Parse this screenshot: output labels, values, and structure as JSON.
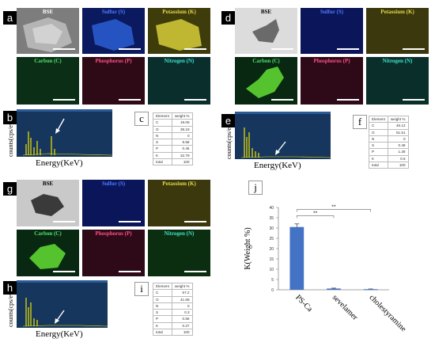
{
  "panels": {
    "a": {
      "label": "a",
      "tiles": [
        "BSE",
        "Sulfur (S)",
        "Potassium (K)",
        "Carbon (C)",
        "Phosphorus (P)",
        "Nitrogen (N)"
      ]
    },
    "d": {
      "label": "d",
      "tiles": [
        "BSE",
        "Sulfur (S)",
        "Potassium (K)",
        "Carbon (C)",
        "Phosphorus (P)",
        "Nitrogen (N)"
      ]
    },
    "g": {
      "label": "g",
      "tiles": [
        "BSE",
        "Sulfur (S)",
        "Potassium (K)",
        "Carbon (C)",
        "Phosphorus (P)",
        "Nitrogen (N)"
      ]
    },
    "b": {
      "label": "b",
      "ylabel": "counts(cps/ev)",
      "xlabel": "Energy(KeV)"
    },
    "e": {
      "label": "e",
      "ylabel": "counts(cps/ev)",
      "xlabel": "Energy(KeV)"
    },
    "h": {
      "label": "h",
      "ylabel": "counts(cps/ev)",
      "xlabel": "Energy(KeV)"
    },
    "c": {
      "label": "c",
      "header": [
        "Element",
        "weight %"
      ],
      "rows": [
        [
          "C",
          "19.05"
        ],
        [
          "O",
          "38.18"
        ],
        [
          "N",
          "0"
        ],
        [
          "S",
          "9.58"
        ],
        [
          "P",
          "0.45"
        ],
        [
          "K",
          "32.79"
        ],
        [
          "total",
          "100"
        ]
      ]
    },
    "f": {
      "label": "f",
      "header": [
        "Element",
        "weight %"
      ],
      "rows": [
        [
          "C",
          "46.12"
        ],
        [
          "O",
          "51.51"
        ],
        [
          "N",
          "0"
        ],
        [
          "S",
          "0.49"
        ],
        [
          "P",
          "1.28"
        ],
        [
          "K",
          "0.6"
        ],
        [
          "total",
          "100"
        ]
      ]
    },
    "i": {
      "label": "i",
      "header": [
        "Element",
        "weight %"
      ],
      "rows": [
        [
          "C",
          "57.2"
        ],
        [
          "O",
          "41.68"
        ],
        [
          "N",
          "0"
        ],
        [
          "S",
          "0.3"
        ],
        [
          "P",
          "0.56"
        ],
        [
          "K",
          "0.27"
        ],
        [
          "total",
          "100"
        ]
      ]
    },
    "j": {
      "label": "j"
    }
  },
  "tile_colors": {
    "BSE": "#8c8c8c",
    "Sulfur": "#0a1a66",
    "Potassium": "#4a4710",
    "Carbon": "#0c3a1c",
    "Phosphorus": "#3a0c1c",
    "Nitrogen": "#0c3a36",
    "label_BSE": "#ffffff",
    "label_S": "#4f7bff",
    "label_K": "#e2d84a",
    "label_C": "#4fe26a",
    "label_P": "#ff4f87",
    "label_N": "#3ae2c8"
  },
  "chart_data": {
    "type": "bar",
    "categories": [
      "PS-Ca",
      "sevelamer",
      "cholestyramine"
    ],
    "values": [
      30.5,
      0.6,
      0.3
    ],
    "errors": [
      1.5,
      0.2,
      0.1
    ],
    "ylabel": "K(Weight %)",
    "xlabel": "",
    "ylim": [
      0,
      40
    ],
    "yticks": [
      0,
      5,
      10,
      15,
      20,
      25,
      30,
      35,
      40
    ],
    "significance": [
      {
        "from": "PS-Ca",
        "to": "sevelamer",
        "label": "**"
      },
      {
        "from": "PS-Ca",
        "to": "cholestyramine",
        "label": "**"
      }
    ],
    "bar_color": "#4472c4",
    "grid": false
  }
}
